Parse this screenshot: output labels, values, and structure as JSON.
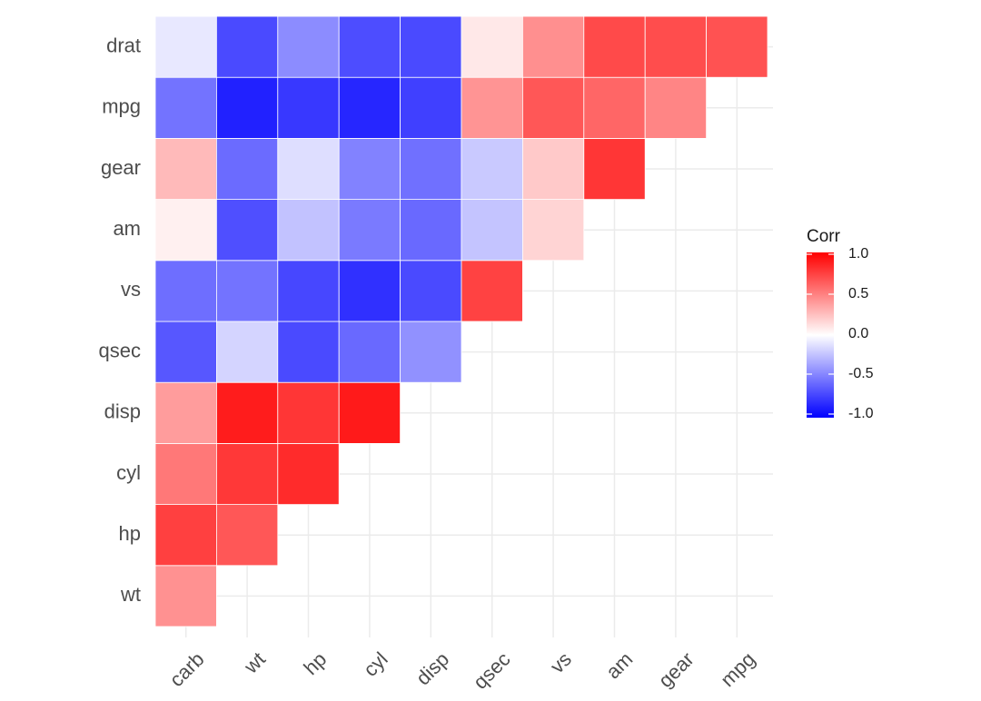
{
  "chart_data": {
    "type": "heatmap",
    "title": "",
    "xlabel": "",
    "ylabel": "",
    "x_categories": [
      "carb",
      "wt",
      "hp",
      "cyl",
      "disp",
      "qsec",
      "vs",
      "am",
      "gear",
      "mpg"
    ],
    "y_categories": [
      "wt",
      "hp",
      "cyl",
      "disp",
      "qsec",
      "vs",
      "am",
      "gear",
      "mpg",
      "drat"
    ],
    "cells": [
      {
        "x": "carb",
        "y": "wt",
        "value": 0.43
      },
      {
        "x": "carb",
        "y": "hp",
        "value": 0.75
      },
      {
        "x": "wt",
        "y": "hp",
        "value": 0.66
      },
      {
        "x": "carb",
        "y": "cyl",
        "value": 0.53
      },
      {
        "x": "wt",
        "y": "cyl",
        "value": 0.78
      },
      {
        "x": "hp",
        "y": "cyl",
        "value": 0.83
      },
      {
        "x": "carb",
        "y": "disp",
        "value": 0.39
      },
      {
        "x": "wt",
        "y": "disp",
        "value": 0.89
      },
      {
        "x": "hp",
        "y": "disp",
        "value": 0.79
      },
      {
        "x": "cyl",
        "y": "disp",
        "value": 0.9
      },
      {
        "x": "carb",
        "y": "qsec",
        "value": -0.66
      },
      {
        "x": "wt",
        "y": "qsec",
        "value": -0.17
      },
      {
        "x": "hp",
        "y": "qsec",
        "value": -0.71
      },
      {
        "x": "cyl",
        "y": "qsec",
        "value": -0.59
      },
      {
        "x": "disp",
        "y": "qsec",
        "value": -0.43
      },
      {
        "x": "carb",
        "y": "vs",
        "value": -0.57
      },
      {
        "x": "wt",
        "y": "vs",
        "value": -0.55
      },
      {
        "x": "hp",
        "y": "vs",
        "value": -0.72
      },
      {
        "x": "cyl",
        "y": "vs",
        "value": -0.81
      },
      {
        "x": "disp",
        "y": "vs",
        "value": -0.71
      },
      {
        "x": "qsec",
        "y": "vs",
        "value": 0.74
      },
      {
        "x": "carb",
        "y": "am",
        "value": 0.06
      },
      {
        "x": "wt",
        "y": "am",
        "value": -0.69
      },
      {
        "x": "hp",
        "y": "am",
        "value": -0.24
      },
      {
        "x": "cyl",
        "y": "am",
        "value": -0.52
      },
      {
        "x": "disp",
        "y": "am",
        "value": -0.59
      },
      {
        "x": "qsec",
        "y": "am",
        "value": -0.23
      },
      {
        "x": "vs",
        "y": "am",
        "value": 0.17
      },
      {
        "x": "carb",
        "y": "gear",
        "value": 0.27
      },
      {
        "x": "wt",
        "y": "gear",
        "value": -0.58
      },
      {
        "x": "hp",
        "y": "gear",
        "value": -0.13
      },
      {
        "x": "cyl",
        "y": "gear",
        "value": -0.49
      },
      {
        "x": "disp",
        "y": "gear",
        "value": -0.56
      },
      {
        "x": "qsec",
        "y": "gear",
        "value": -0.21
      },
      {
        "x": "vs",
        "y": "gear",
        "value": 0.21
      },
      {
        "x": "am",
        "y": "gear",
        "value": 0.79
      },
      {
        "x": "carb",
        "y": "mpg",
        "value": -0.55
      },
      {
        "x": "wt",
        "y": "mpg",
        "value": -0.87
      },
      {
        "x": "hp",
        "y": "mpg",
        "value": -0.78
      },
      {
        "x": "cyl",
        "y": "mpg",
        "value": -0.85
      },
      {
        "x": "disp",
        "y": "mpg",
        "value": -0.75
      },
      {
        "x": "qsec",
        "y": "mpg",
        "value": 0.42
      },
      {
        "x": "vs",
        "y": "mpg",
        "value": 0.66
      },
      {
        "x": "am",
        "y": "mpg",
        "value": 0.6
      },
      {
        "x": "gear",
        "y": "mpg",
        "value": 0.48
      },
      {
        "x": "carb",
        "y": "drat",
        "value": -0.09
      },
      {
        "x": "wt",
        "y": "drat",
        "value": -0.71
      },
      {
        "x": "hp",
        "y": "drat",
        "value": -0.45
      },
      {
        "x": "cyl",
        "y": "drat",
        "value": -0.7
      },
      {
        "x": "disp",
        "y": "drat",
        "value": -0.71
      },
      {
        "x": "qsec",
        "y": "drat",
        "value": 0.09
      },
      {
        "x": "vs",
        "y": "drat",
        "value": 0.44
      },
      {
        "x": "am",
        "y": "drat",
        "value": 0.71
      },
      {
        "x": "gear",
        "y": "drat",
        "value": 0.7
      },
      {
        "x": "mpg",
        "y": "drat",
        "value": 0.68
      }
    ],
    "legend": {
      "title": "Corr",
      "range": [
        -1.0,
        1.0
      ],
      "tick_values": [
        1.0,
        0.5,
        0.0,
        -0.5,
        -1.0
      ],
      "tick_labels": [
        "1.0",
        "0.5",
        "0.0",
        "-0.5",
        "-1.0"
      ],
      "placement": "right"
    },
    "colors": {
      "low": "#0000FF",
      "mid": "#FFFFFF",
      "high": "#FF0000",
      "grid": "#EBEBEB",
      "cell_border": "#FFFFFF"
    }
  }
}
